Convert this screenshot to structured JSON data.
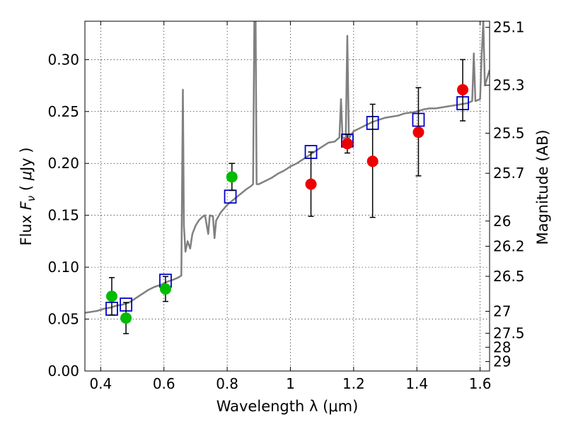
{
  "chart_data": {
    "type": "scatter",
    "xlabel": "Wavelength  λ (μm)",
    "ylabel_left_parts": [
      "Flux  ",
      "F",
      "ν",
      "  ( ",
      "μ",
      "Jy )"
    ],
    "ylabel_right": "Magnitude (AB)",
    "xlim": [
      0.35,
      1.63
    ],
    "ylim": [
      0.0,
      0.337
    ],
    "grid": true,
    "x_ticks": [
      0.4,
      0.6,
      0.8,
      1.0,
      1.2,
      1.4,
      1.6
    ],
    "x_tick_labels": [
      "0.4",
      "0.6",
      "0.8",
      "1",
      "1.2",
      "1.4",
      "1.6"
    ],
    "y_ticks": [
      0.0,
      0.05,
      0.1,
      0.15,
      0.2,
      0.25,
      0.3
    ],
    "y_tick_labels": [
      "0.00",
      "0.05",
      "0.10",
      "0.15",
      "0.20",
      "0.25",
      "0.30"
    ],
    "right_ticks": [
      {
        "label": "25.1",
        "flux": 0.3311
      },
      {
        "label": "25.3",
        "flux": 0.2754
      },
      {
        "label": "25.5",
        "flux": 0.2291
      },
      {
        "label": "25.7",
        "flux": 0.1905
      },
      {
        "label": "26",
        "flux": 0.1445
      },
      {
        "label": "26.2",
        "flux": 0.1202
      },
      {
        "label": "26.5",
        "flux": 0.0912
      },
      {
        "label": "27",
        "flux": 0.0575
      },
      {
        "label": "27.5",
        "flux": 0.0363
      },
      {
        "label": "28",
        "flux": 0.0229
      },
      {
        "label": "29",
        "flux": 0.0091
      }
    ],
    "model_spectrum": {
      "color": "#808080",
      "points": [
        [
          0.35,
          0.056
        ],
        [
          0.37,
          0.057
        ],
        [
          0.39,
          0.058
        ],
        [
          0.41,
          0.06
        ],
        [
          0.43,
          0.061
        ],
        [
          0.45,
          0.063
        ],
        [
          0.47,
          0.064
        ],
        [
          0.49,
          0.066
        ],
        [
          0.51,
          0.07
        ],
        [
          0.53,
          0.074
        ],
        [
          0.55,
          0.078
        ],
        [
          0.57,
          0.081
        ],
        [
          0.59,
          0.083
        ],
        [
          0.61,
          0.086
        ],
        [
          0.63,
          0.088
        ],
        [
          0.645,
          0.09
        ],
        [
          0.655,
          0.092
        ],
        [
          0.66,
          0.271
        ],
        [
          0.663,
          0.14
        ],
        [
          0.668,
          0.115
        ],
        [
          0.675,
          0.125
        ],
        [
          0.683,
          0.118
        ],
        [
          0.69,
          0.132
        ],
        [
          0.7,
          0.14
        ],
        [
          0.71,
          0.145
        ],
        [
          0.72,
          0.148
        ],
        [
          0.73,
          0.15
        ],
        [
          0.74,
          0.132
        ],
        [
          0.745,
          0.15
        ],
        [
          0.755,
          0.149
        ],
        [
          0.76,
          0.128
        ],
        [
          0.765,
          0.145
        ],
        [
          0.78,
          0.153
        ],
        [
          0.8,
          0.16
        ],
        [
          0.82,
          0.165
        ],
        [
          0.84,
          0.17
        ],
        [
          0.86,
          0.175
        ],
        [
          0.875,
          0.178
        ],
        [
          0.882,
          0.18
        ],
        [
          0.886,
          0.337
        ],
        [
          0.89,
          0.337
        ],
        [
          0.893,
          0.18
        ],
        [
          0.9,
          0.18
        ],
        [
          0.92,
          0.183
        ],
        [
          0.94,
          0.186
        ],
        [
          0.96,
          0.19
        ],
        [
          0.98,
          0.193
        ],
        [
          1.0,
          0.197
        ],
        [
          1.02,
          0.2
        ],
        [
          1.04,
          0.204
        ],
        [
          1.06,
          0.208
        ],
        [
          1.08,
          0.212
        ],
        [
          1.1,
          0.216
        ],
        [
          1.12,
          0.22
        ],
        [
          1.14,
          0.221
        ],
        [
          1.155,
          0.225
        ],
        [
          1.16,
          0.262
        ],
        [
          1.165,
          0.224
        ],
        [
          1.175,
          0.225
        ],
        [
          1.18,
          0.323
        ],
        [
          1.185,
          0.224
        ],
        [
          1.2,
          0.231
        ],
        [
          1.22,
          0.234
        ],
        [
          1.24,
          0.237
        ],
        [
          1.26,
          0.24
        ],
        [
          1.28,
          0.242
        ],
        [
          1.3,
          0.244
        ],
        [
          1.32,
          0.245
        ],
        [
          1.34,
          0.246
        ],
        [
          1.36,
          0.248
        ],
        [
          1.38,
          0.249
        ],
        [
          1.4,
          0.25
        ],
        [
          1.42,
          0.252
        ],
        [
          1.44,
          0.253
        ],
        [
          1.46,
          0.253
        ],
        [
          1.48,
          0.254
        ],
        [
          1.5,
          0.255
        ],
        [
          1.52,
          0.256
        ],
        [
          1.54,
          0.257
        ],
        [
          1.56,
          0.258
        ],
        [
          1.575,
          0.26
        ],
        [
          1.58,
          0.306
        ],
        [
          1.585,
          0.26
        ],
        [
          1.6,
          0.262
        ],
        [
          1.605,
          0.305
        ],
        [
          1.61,
          0.337
        ],
        [
          1.615,
          0.275
        ],
        [
          1.63,
          0.29
        ]
      ]
    },
    "series": [
      {
        "marker": "open-square",
        "color": "#0000cc",
        "points": [
          [
            0.435,
            0.06
          ],
          [
            0.48,
            0.064
          ],
          [
            0.605,
            0.087
          ],
          [
            0.81,
            0.168
          ],
          [
            1.065,
            0.211
          ],
          [
            1.18,
            0.222
          ],
          [
            1.26,
            0.239
          ],
          [
            1.405,
            0.242
          ],
          [
            1.545,
            0.258
          ]
        ]
      },
      {
        "marker": "filled-circle",
        "color": "#00bb00",
        "points": [
          {
            "x": 0.435,
            "y": 0.072,
            "err": [
              0.054,
              0.09
            ]
          },
          {
            "x": 0.48,
            "y": 0.051,
            "err": [
              0.036,
              0.066
            ]
          },
          {
            "x": 0.605,
            "y": 0.079,
            "err": [
              0.067,
              0.091
            ]
          },
          {
            "x": 0.815,
            "y": 0.187,
            "err": [
              0.174,
              0.2
            ]
          }
        ]
      },
      {
        "marker": "filled-circle",
        "color": "#ee0000",
        "points": [
          {
            "x": 1.065,
            "y": 0.18,
            "err": [
              0.149,
              0.211
            ]
          },
          {
            "x": 1.18,
            "y": 0.219,
            "err": [
              0.21,
              0.228
            ]
          },
          {
            "x": 1.26,
            "y": 0.202,
            "err": [
              0.148,
              0.257
            ]
          },
          {
            "x": 1.405,
            "y": 0.23,
            "err": [
              0.188,
              0.273
            ]
          },
          {
            "x": 1.545,
            "y": 0.271,
            "err": [
              0.241,
              0.3
            ]
          }
        ]
      }
    ]
  }
}
